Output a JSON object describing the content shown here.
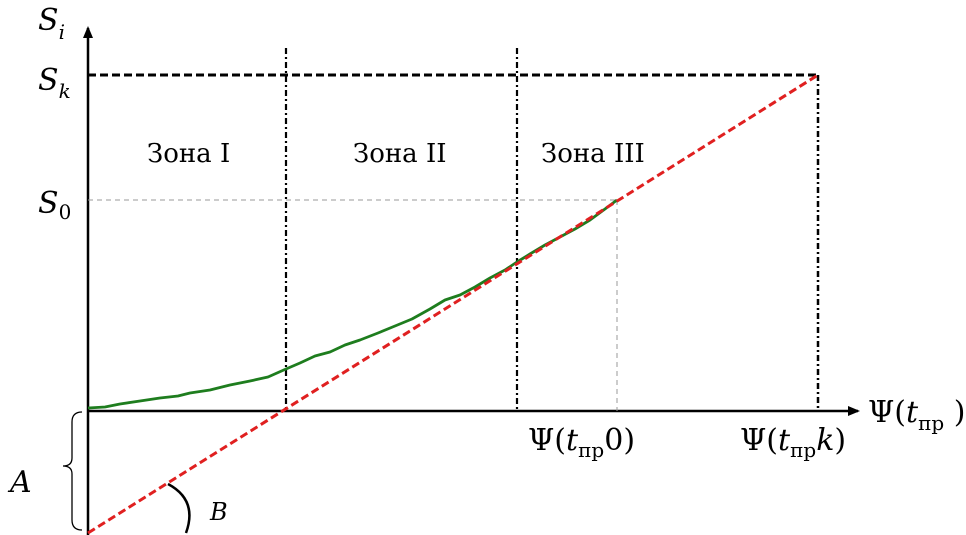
{
  "axes": {
    "y_label": {
      "main": "S",
      "sub": "i"
    },
    "x_label": {
      "prefix": "Ψ(",
      "var": "t",
      "sub": "пр",
      "suffix": " )"
    }
  },
  "y_ticks": {
    "sk": {
      "main": "S",
      "sub": "k"
    },
    "s0": {
      "main": "S",
      "sub": "0"
    }
  },
  "x_ticks": {
    "t0": {
      "prefix": "Ψ(",
      "var": "t",
      "sub": "пр",
      "tail": "0",
      "suffix": ")"
    },
    "tk": {
      "prefix": "Ψ(",
      "var": "t",
      "sub": "пр",
      "tail": "k",
      "suffix": ")"
    }
  },
  "zones": [
    "Зона I",
    "Зона II",
    "Зона III"
  ],
  "annotations": {
    "intercept": "A",
    "angle": "B"
  },
  "colors": {
    "curve": "#1e7d1e",
    "dashed_line": "#e02020",
    "axes": "#000000",
    "guide": "#999999"
  }
}
